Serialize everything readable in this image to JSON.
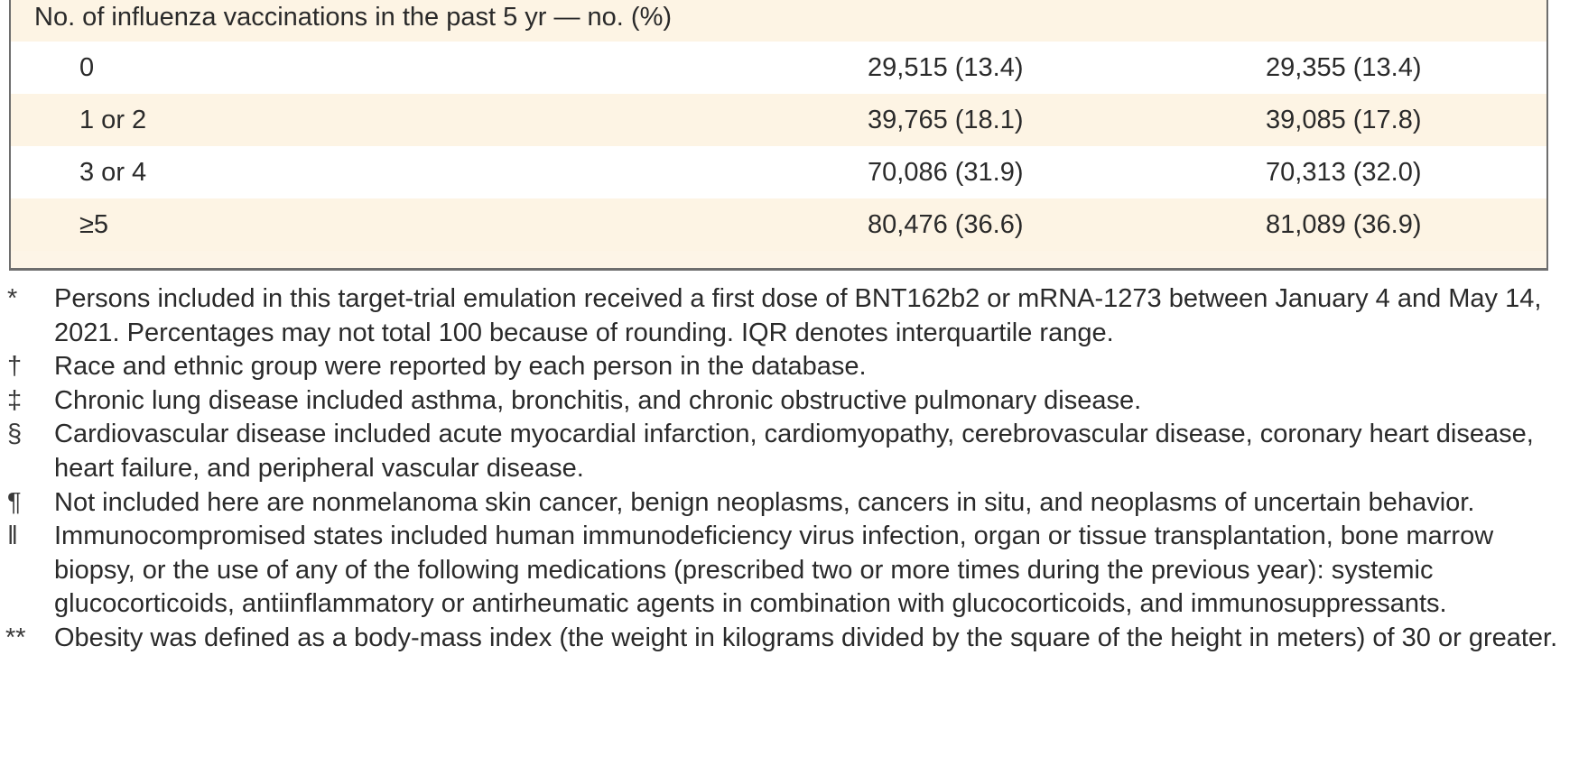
{
  "table": {
    "section_header": "No. of influenza vaccinations in the past 5 yr — no. (%)",
    "rows": [
      {
        "label": "0",
        "col_a": "29,515 (13.4)",
        "col_b": "29,355 (13.4)"
      },
      {
        "label": "1 or 2",
        "col_a": "39,765 (18.1)",
        "col_b": "39,085 (17.8)"
      },
      {
        "label": "3 or 4",
        "col_a": "70,086 (31.9)",
        "col_b": "70,313 (32.0)"
      },
      {
        "label": "≥5",
        "col_a": "80,476 (36.6)",
        "col_b": "81,089 (36.9)"
      }
    ]
  },
  "footnotes": [
    {
      "mark": "*",
      "text": "Persons included in this target-trial emulation received a first dose of BNT162b2 or mRNA-1273 between January 4 and May 14, 2021. Percentages may not total 100 because of rounding. IQR denotes interquartile range."
    },
    {
      "mark": "†",
      "text": "Race and ethnic group were reported by each person in the database."
    },
    {
      "mark": "‡",
      "text": "Chronic lung disease included asthma, bronchitis, and chronic obstructive pulmonary disease."
    },
    {
      "mark": "§",
      "text": "Cardiovascular disease included acute myocardial infarction, cardiomyopathy, cerebrovascular disease, coronary heart disease, heart failure, and peripheral vascular disease."
    },
    {
      "mark": "¶",
      "text": "Not included here are nonmelanoma skin cancer, benign neoplasms, cancers in situ, and neoplasms of uncertain behavior."
    },
    {
      "mark": "‖",
      "text": "Immunocompromised states included human immunodeficiency virus infection, organ or tissue transplantation, bone marrow biopsy, or the use of any of the following medications (prescribed two or more times during the previous year): systemic glucocorticoids, antiinflammatory or antirheumatic agents in combination with glucocorticoids, and immunosuppressants."
    },
    {
      "mark": "**",
      "text": "Obesity was defined as a body-mass index (the weight in kilograms divided by the square of the height in meters) of 30 or greater."
    }
  ]
}
